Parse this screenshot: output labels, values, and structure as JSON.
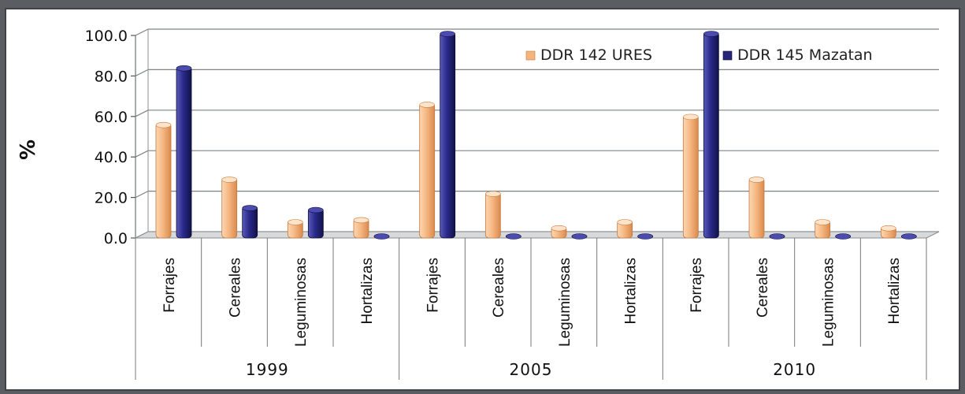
{
  "chart_data": {
    "type": "bar",
    "title": "",
    "ylabel": "%",
    "xlabel": "",
    "ylim": [
      0,
      100
    ],
    "yticks": [
      "0.0",
      "20.0",
      "40.0",
      "60.0",
      "80.0",
      "100.0"
    ],
    "grid": true,
    "legend_position": "top-right",
    "groups": [
      "1999",
      "2005",
      "2010"
    ],
    "subcategories": [
      "Forrajes",
      "Cereales",
      "Leguminosas",
      "Hortalizas"
    ],
    "series": [
      {
        "name": "DDR 142 URES",
        "color": "#f5b57e",
        "values": [
          55,
          28,
          7,
          8,
          65,
          21,
          4,
          7,
          59,
          28,
          7,
          4
        ]
      },
      {
        "name": "DDR 145 Mazatan",
        "color": "#26267a",
        "values": [
          83,
          14,
          13,
          0,
          100,
          0,
          0,
          0,
          100,
          0,
          0,
          0
        ]
      }
    ]
  }
}
